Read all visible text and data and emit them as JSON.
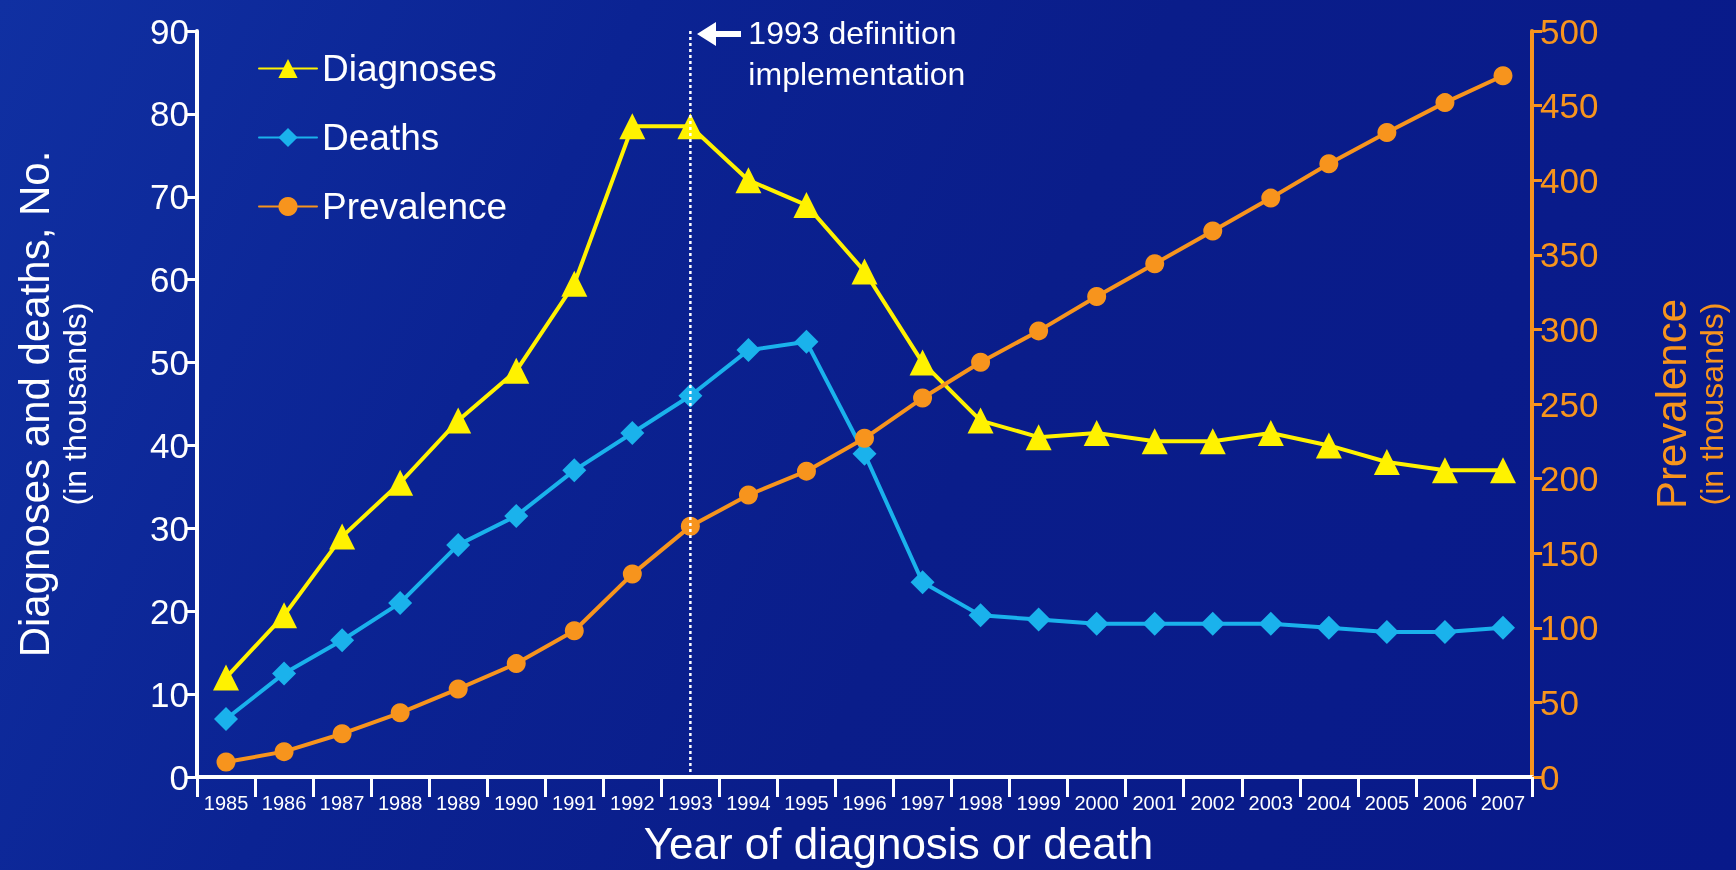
{
  "chart_data": {
    "type": "line",
    "xlabel": "Year of diagnosis or death",
    "ylabel": "Diagnoses and deaths, No. (in thousands)",
    "y2label": "Prevalence (in thousands)",
    "categories": [
      "1985",
      "1986",
      "1987",
      "1988",
      "1989",
      "1990",
      "1991",
      "1992",
      "1993",
      "1994",
      "1995",
      "1996",
      "1997",
      "1998",
      "1999",
      "2000",
      "2001",
      "2002",
      "2003",
      "2004",
      "2005",
      "2006",
      "2007"
    ],
    "series": [
      {
        "name": "Diagnoses",
        "color": "#fff200",
        "marker": "triangle",
        "values": [
          12,
          19.5,
          29,
          35.5,
          43,
          49,
          59.5,
          78.5,
          78.5,
          72,
          69,
          61,
          50,
          43,
          41,
          41.5,
          40.5,
          40.5,
          41.5,
          40,
          38,
          37,
          37
        ]
      },
      {
        "name": "Deaths",
        "color": "#1ab2ec",
        "marker": "diamond",
        "values": [
          7,
          12.5,
          16.5,
          21,
          28,
          31.5,
          37,
          41.5,
          46,
          51.5,
          52.5,
          39,
          23.5,
          19.5,
          19,
          18.5,
          18.5,
          18.5,
          18.5,
          18,
          17.5,
          17.5,
          18
        ]
      },
      {
        "name": "Prevalence",
        "color": "#f7941d",
        "marker": "circle",
        "axis": "y2",
        "values": [
          10,
          17,
          29,
          43,
          59,
          76,
          98,
          136,
          168,
          189,
          205,
          227,
          254,
          278,
          299,
          322,
          344,
          366,
          388,
          411,
          432,
          452,
          470
        ]
      }
    ],
    "ylim": [
      0,
      90
    ],
    "yticks": [
      0,
      10,
      20,
      30,
      40,
      50,
      60,
      70,
      80,
      90
    ],
    "y2lim": [
      0,
      500
    ],
    "y2ticks": [
      0,
      50,
      100,
      150,
      200,
      250,
      300,
      350,
      400,
      450,
      500
    ],
    "ref_lines": [
      {
        "axis": "x",
        "value": "1993",
        "label": "1993 definition implementation",
        "color": "#ffffff",
        "line_style": "dotted"
      }
    ],
    "legend": "top left",
    "line_style": "solid",
    "grid": false
  }
}
